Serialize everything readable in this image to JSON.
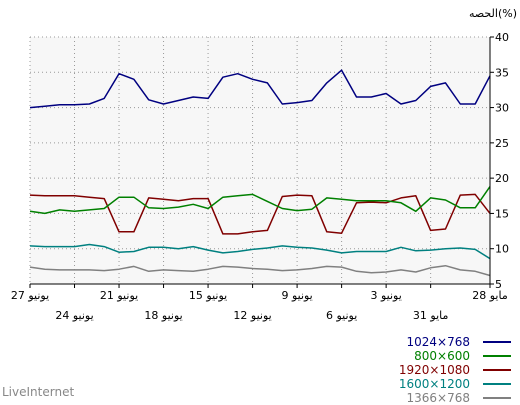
{
  "chart_data": {
    "type": "line",
    "ylabel": "الحصه(%)",
    "ylim": [
      5,
      40
    ],
    "yticks": [
      5,
      10,
      15,
      20,
      25,
      30,
      35,
      40
    ],
    "grid": true,
    "legend_position": "bottom-right",
    "x_labels_upper": [
      {
        "index": 0,
        "label": "28 مايو"
      },
      {
        "index": 7,
        "label": "3 يونيو"
      },
      {
        "index": 13,
        "label": "9 يونيو"
      },
      {
        "index": 19,
        "label": "15 يونيو"
      },
      {
        "index": 25,
        "label": "21 يونيو"
      },
      {
        "index": 31,
        "label": "27 يونيو"
      }
    ],
    "x_labels_lower": [
      {
        "index": 4,
        "label": "31 مايو"
      },
      {
        "index": 10,
        "label": "6 يونيو"
      },
      {
        "index": 16,
        "label": "12 يونيو"
      },
      {
        "index": 22,
        "label": "18 يونيو"
      },
      {
        "index": 28,
        "label": "24 يونيو"
      }
    ],
    "series": [
      {
        "name": "1024×768",
        "color": "#000080",
        "values": [
          34.5,
          30.5,
          30.5,
          33.5,
          33.0,
          31.0,
          30.5,
          32.0,
          31.5,
          31.5,
          35.3,
          33.5,
          31.0,
          30.7,
          30.5,
          33.5,
          34.0,
          34.8,
          34.3,
          31.3,
          31.5,
          31.0,
          30.5,
          31.1,
          34.0,
          34.8,
          31.3,
          30.5,
          30.4,
          30.4,
          30.2,
          30.0
        ]
      },
      {
        "name": "800×600",
        "color": "#008000",
        "values": [
          18.8,
          15.8,
          15.8,
          16.9,
          17.2,
          15.3,
          16.5,
          16.8,
          16.8,
          16.8,
          17.0,
          17.2,
          15.6,
          15.4,
          15.7,
          16.7,
          17.7,
          17.5,
          17.3,
          15.7,
          16.3,
          15.9,
          15.7,
          15.8,
          17.3,
          17.3,
          15.7,
          15.5,
          15.3,
          15.5,
          15.0,
          15.3
        ]
      },
      {
        "name": "1920×1080",
        "color": "#800000",
        "values": [
          15.0,
          17.7,
          17.6,
          12.8,
          12.6,
          17.5,
          17.2,
          16.5,
          16.6,
          16.5,
          12.2,
          12.4,
          17.5,
          17.6,
          17.4,
          12.6,
          12.4,
          12.1,
          12.1,
          17.1,
          17.1,
          16.8,
          17.0,
          17.2,
          12.4,
          12.4,
          17.1,
          17.3,
          17.5,
          17.5,
          17.5,
          17.6
        ]
      },
      {
        "name": "1600×1200",
        "color": "#008080",
        "values": [
          8.6,
          9.9,
          10.1,
          10.0,
          9.8,
          9.7,
          10.2,
          9.6,
          9.6,
          9.6,
          9.4,
          9.8,
          10.1,
          10.2,
          10.4,
          10.1,
          9.9,
          9.6,
          9.4,
          9.8,
          10.3,
          10.0,
          10.2,
          10.2,
          9.6,
          9.5,
          10.3,
          10.6,
          10.3,
          10.3,
          10.3,
          10.4
        ]
      },
      {
        "name": "1366×768",
        "color": "#808080",
        "values": [
          6.2,
          6.8,
          7.0,
          7.6,
          7.3,
          6.7,
          7.0,
          6.7,
          6.6,
          6.8,
          7.4,
          7.5,
          7.2,
          7.0,
          6.9,
          7.1,
          7.2,
          7.4,
          7.5,
          7.1,
          6.8,
          6.9,
          7.0,
          6.8,
          7.5,
          7.1,
          6.9,
          7.0,
          7.0,
          7.0,
          7.1,
          7.4
        ]
      }
    ]
  },
  "brand": "LiveInternet"
}
